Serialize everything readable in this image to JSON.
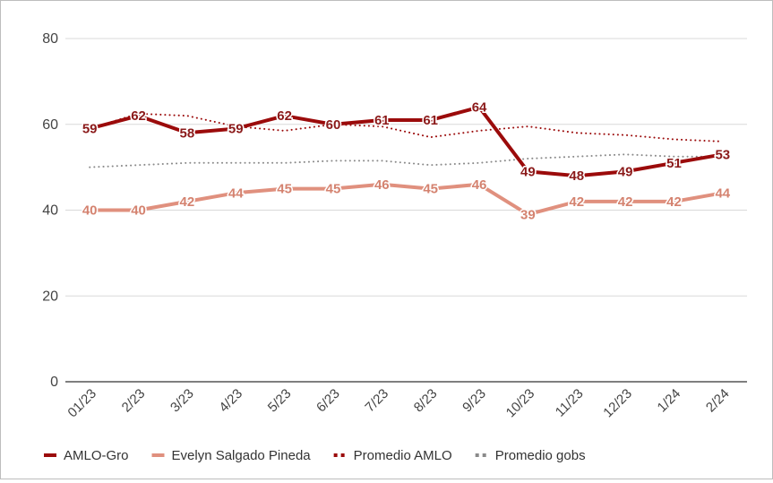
{
  "chart_data": {
    "type": "line",
    "categories": [
      "01/23",
      "2/23",
      "3/23",
      "4/23",
      "5/23",
      "6/23",
      "7/23",
      "8/23",
      "9/23",
      "10/23",
      "11/23",
      "12/23",
      "1/24",
      "2/24"
    ],
    "ylim": [
      0,
      80
    ],
    "yticks": [
      0,
      20,
      40,
      60,
      80
    ],
    "grid": true,
    "legend_position": "bottom",
    "series": [
      {
        "name": "AMLO-Gro",
        "style": "solid",
        "width": 4,
        "color": "#9b0b0b",
        "label_color": "#8b1a1a",
        "labels": true,
        "values": [
          59,
          62,
          58,
          59,
          62,
          60,
          61,
          61,
          64,
          49,
          48,
          49,
          51,
          53
        ]
      },
      {
        "name": "Evelyn Salgado Pineda",
        "style": "solid",
        "width": 4,
        "color": "#e0907e",
        "label_color": "#d4826f",
        "labels": true,
        "values": [
          40,
          40,
          42,
          44,
          45,
          45,
          46,
          45,
          46,
          39,
          42,
          42,
          42,
          44
        ]
      },
      {
        "name": "Promedio AMLO",
        "style": "dotted",
        "width": 2,
        "color": "#9b0b0b",
        "labels": false,
        "values": [
          59,
          62.5,
          62,
          59.5,
          58.5,
          60,
          59.5,
          57,
          58.5,
          59.5,
          58,
          57.5,
          56.5,
          56
        ]
      },
      {
        "name": "Promedio gobs",
        "style": "dotted",
        "width": 2,
        "color": "#8a8a8a",
        "labels": false,
        "values": [
          50,
          50.5,
          51,
          51,
          51,
          51.5,
          51.5,
          50.5,
          51,
          52,
          52.5,
          53,
          52.5,
          52.5
        ]
      }
    ]
  }
}
